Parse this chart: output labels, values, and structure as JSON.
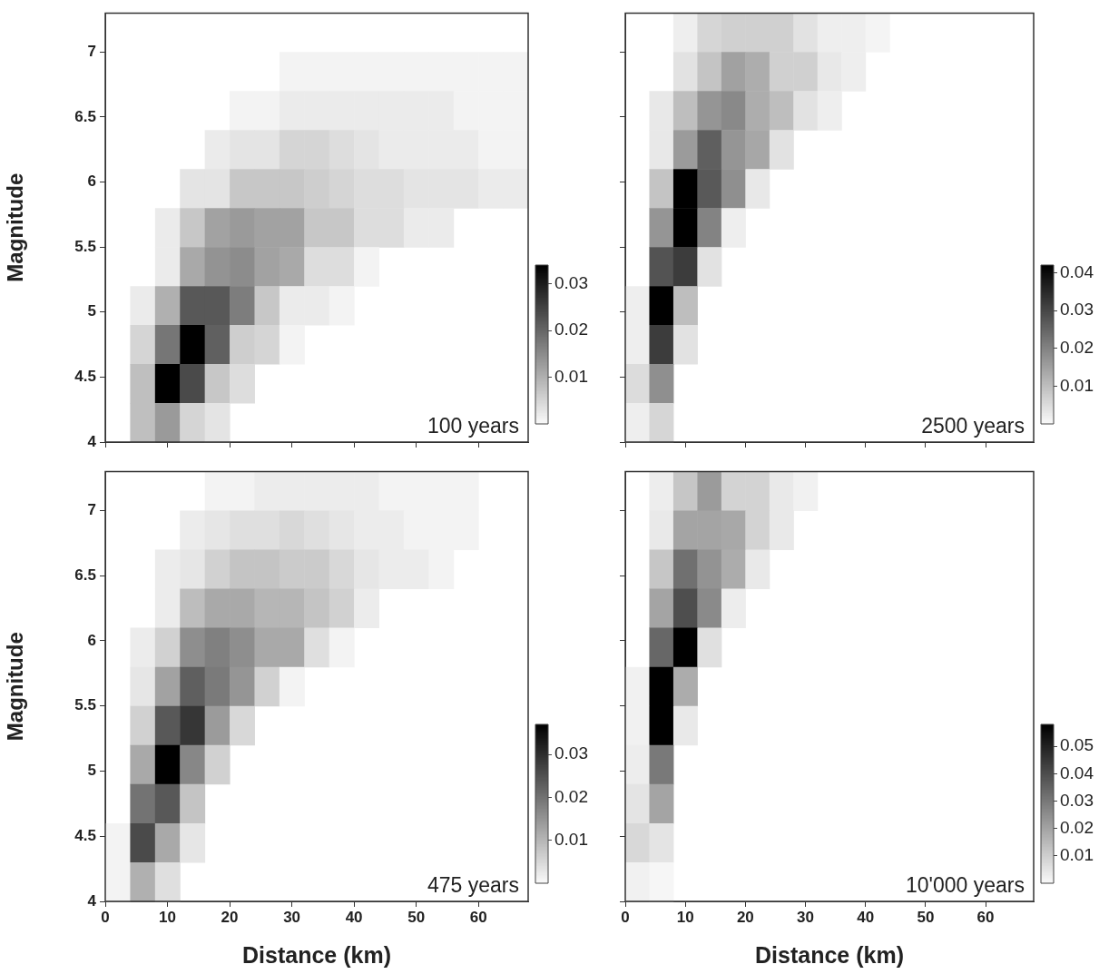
{
  "chart_data": [
    {
      "type": "heatmap",
      "ylabel": "Magnitude",
      "annotations": [
        "100 years"
      ],
      "tick_labels": "y",
      "x": [
        2,
        6,
        10,
        14,
        18,
        22,
        26,
        30,
        34,
        38,
        42,
        46,
        50,
        54,
        58,
        62,
        66
      ],
      "y": [
        6.85,
        6.55,
        6.25,
        5.95,
        5.65,
        5.35,
        5.05,
        4.75,
        4.45,
        4.15
      ],
      "xlim": [
        0,
        68
      ],
      "xticks": [
        0,
        10,
        20,
        30,
        40,
        50,
        60
      ],
      "ylim": [
        4,
        7.3
      ],
      "yticks": [
        4,
        4.5,
        5,
        5.5,
        6,
        6.5,
        7
      ],
      "clim": [
        0,
        0.034
      ],
      "cticks": [
        0.01,
        0.02,
        0.03
      ],
      "cells": [
        [
          null,
          null,
          null,
          null,
          null,
          null,
          null,
          0.001,
          0.001,
          0.001,
          0.001,
          0.001,
          0.001,
          0.001,
          0.001,
          0.001,
          0.001
        ],
        [
          null,
          null,
          null,
          null,
          null,
          0.001,
          0.001,
          0.002,
          0.002,
          0.002,
          0.002,
          0.002,
          0.002,
          0.002,
          0.001,
          0.001,
          0.001
        ],
        [
          null,
          null,
          null,
          null,
          0.002,
          0.003,
          0.003,
          0.005,
          0.005,
          0.004,
          0.003,
          0.002,
          0.002,
          0.002,
          0.002,
          0.001,
          0.001
        ],
        [
          null,
          null,
          null,
          0.003,
          0.003,
          0.007,
          0.007,
          0.007,
          0.006,
          0.005,
          0.004,
          0.004,
          0.003,
          0.003,
          0.003,
          0.002,
          0.002
        ],
        [
          null,
          null,
          0.002,
          0.007,
          0.012,
          0.013,
          0.012,
          0.012,
          0.007,
          0.007,
          0.004,
          0.004,
          0.002,
          0.002,
          null,
          null,
          null
        ],
        [
          null,
          null,
          0.002,
          0.011,
          0.014,
          0.015,
          0.012,
          0.011,
          0.004,
          0.004,
          0.001,
          null,
          null,
          null,
          null,
          null,
          null
        ],
        [
          null,
          0.002,
          0.01,
          0.022,
          0.022,
          0.017,
          0.007,
          0.002,
          0.002,
          0.001,
          null,
          null,
          null,
          null,
          null,
          null,
          null
        ],
        [
          null,
          0.005,
          0.018,
          0.034,
          0.021,
          0.006,
          0.005,
          0.001,
          null,
          null,
          null,
          null,
          null,
          null,
          null,
          null,
          null
        ],
        [
          null,
          0.008,
          0.034,
          0.024,
          0.007,
          0.004,
          null,
          null,
          null,
          null,
          null,
          null,
          null,
          null,
          null,
          null,
          null
        ],
        [
          null,
          0.008,
          0.013,
          0.005,
          0.003,
          null,
          null,
          null,
          null,
          null,
          null,
          null,
          null,
          null,
          null,
          null,
          null
        ]
      ]
    },
    {
      "type": "heatmap",
      "annotations": [
        "2500 years"
      ],
      "tick_labels": false,
      "x": [
        2,
        6,
        10,
        14,
        18,
        22,
        26,
        30,
        34,
        38,
        42
      ],
      "y": [
        7.15,
        6.85,
        6.55,
        6.25,
        5.95,
        5.65,
        5.35,
        5.05,
        4.75,
        4.45,
        4.15
      ],
      "xlim": [
        0,
        68
      ],
      "xticks": [
        0,
        10,
        20,
        30,
        40,
        50,
        60
      ],
      "ylim": [
        4,
        7.3
      ],
      "yticks": [
        4,
        4.5,
        5,
        5.5,
        6,
        6.5,
        7
      ],
      "clim": [
        0,
        0.042
      ],
      "cticks": [
        0.01,
        0.02,
        0.03,
        0.04
      ],
      "cells": [
        [
          null,
          null,
          0.002,
          0.006,
          0.007,
          0.007,
          0.007,
          0.004,
          0.002,
          0.002,
          0.001
        ],
        [
          null,
          null,
          0.004,
          0.009,
          0.015,
          0.013,
          0.007,
          0.007,
          0.003,
          0.002,
          null
        ],
        [
          null,
          0.003,
          0.01,
          0.017,
          0.019,
          0.013,
          0.01,
          0.004,
          0.002,
          null,
          null
        ],
        [
          null,
          0.003,
          0.016,
          0.026,
          0.017,
          0.014,
          0.004,
          null,
          null,
          null,
          null
        ],
        [
          null,
          0.009,
          0.042,
          0.027,
          0.018,
          0.003,
          null,
          null,
          null,
          null,
          null
        ],
        [
          null,
          0.017,
          0.042,
          0.02,
          0.002,
          null,
          null,
          null,
          null,
          null,
          null
        ],
        [
          null,
          0.028,
          0.032,
          0.004,
          null,
          null,
          null,
          null,
          null,
          null,
          null
        ],
        [
          0.002,
          0.042,
          0.01,
          null,
          null,
          null,
          null,
          null,
          null,
          null,
          null
        ],
        [
          0.002,
          0.032,
          0.004,
          null,
          null,
          null,
          null,
          null,
          null,
          null,
          null
        ],
        [
          0.005,
          0.018,
          null,
          null,
          null,
          null,
          null,
          null,
          null,
          null,
          null
        ],
        [
          0.002,
          0.006,
          null,
          null,
          null,
          null,
          null,
          null,
          null,
          null,
          null
        ]
      ]
    },
    {
      "type": "heatmap",
      "xlabel": "Distance (km)",
      "ylabel": "Magnitude",
      "annotations": [
        "475 years"
      ],
      "x": [
        2,
        6,
        10,
        14,
        18,
        22,
        26,
        30,
        34,
        38,
        42,
        46,
        50,
        54,
        58
      ],
      "y": [
        7.15,
        6.85,
        6.55,
        6.25,
        5.95,
        5.65,
        5.35,
        5.05,
        4.75,
        4.45,
        4.15
      ],
      "xlim": [
        0,
        68
      ],
      "xticks": [
        0,
        10,
        20,
        30,
        40,
        50,
        60
      ],
      "ylim": [
        4,
        7.3
      ],
      "yticks": [
        4,
        4.5,
        5,
        5.5,
        6,
        6.5,
        7
      ],
      "clim": [
        0,
        0.037
      ],
      "cticks": [
        0.01,
        0.02,
        0.03
      ],
      "cells": [
        [
          null,
          null,
          null,
          null,
          0.001,
          0.001,
          0.002,
          0.002,
          0.002,
          0.002,
          0.002,
          0.001,
          0.001,
          0.001,
          0.001
        ],
        [
          null,
          null,
          null,
          0.002,
          0.003,
          0.004,
          0.004,
          0.005,
          0.004,
          0.003,
          0.002,
          0.002,
          0.001,
          0.001,
          0.001
        ],
        [
          null,
          null,
          0.002,
          0.003,
          0.006,
          0.008,
          0.008,
          0.007,
          0.007,
          0.005,
          0.003,
          0.002,
          0.002,
          0.001,
          null
        ],
        [
          null,
          null,
          0.002,
          0.009,
          0.012,
          0.012,
          0.01,
          0.01,
          0.008,
          0.006,
          0.002,
          null,
          null,
          null,
          null
        ],
        [
          null,
          0.002,
          0.006,
          0.016,
          0.018,
          0.016,
          0.012,
          0.012,
          0.004,
          0.001,
          null,
          null,
          null,
          null,
          null
        ],
        [
          null,
          0.003,
          0.013,
          0.023,
          0.019,
          0.015,
          0.006,
          0.001,
          null,
          null,
          null,
          null,
          null,
          null,
          null
        ],
        [
          null,
          0.006,
          0.024,
          0.029,
          0.014,
          0.005,
          null,
          null,
          null,
          null,
          null,
          null,
          null,
          null,
          null
        ],
        [
          null,
          0.012,
          0.037,
          0.017,
          0.006,
          null,
          null,
          null,
          null,
          null,
          null,
          null,
          null,
          null,
          null
        ],
        [
          null,
          0.02,
          0.024,
          0.008,
          null,
          null,
          null,
          null,
          null,
          null,
          null,
          null,
          null,
          null,
          null
        ],
        [
          0.001,
          0.026,
          0.012,
          0.003,
          null,
          null,
          null,
          null,
          null,
          null,
          null,
          null,
          null,
          null,
          null
        ],
        [
          0.001,
          0.011,
          0.004,
          null,
          null,
          null,
          null,
          null,
          null,
          null,
          null,
          null,
          null,
          null,
          null
        ]
      ]
    },
    {
      "type": "heatmap",
      "xlabel": "Distance (km)",
      "annotations": [
        "10'000 years"
      ],
      "tick_labels": "x",
      "x": [
        2,
        6,
        10,
        14,
        18,
        22,
        26,
        30
      ],
      "y": [
        7.15,
        6.85,
        6.55,
        6.25,
        5.95,
        5.65,
        5.35,
        5.05,
        4.75,
        4.45,
        4.15
      ],
      "xlim": [
        0,
        68
      ],
      "xticks": [
        0,
        10,
        20,
        30,
        40,
        50,
        60
      ],
      "ylim": [
        4,
        7.3
      ],
      "yticks": [
        4,
        4.5,
        5,
        5.5,
        6,
        6.5,
        7
      ],
      "clim": [
        0,
        0.058
      ],
      "cticks": [
        0.01,
        0.02,
        0.03,
        0.04,
        0.05
      ],
      "cells": [
        [
          null,
          0.003,
          0.012,
          0.022,
          0.009,
          0.009,
          0.004,
          0.002
        ],
        [
          null,
          0.004,
          0.02,
          0.02,
          0.019,
          0.009,
          0.004,
          null
        ],
        [
          null,
          0.012,
          0.032,
          0.024,
          0.018,
          0.004,
          null,
          null
        ],
        [
          null,
          0.02,
          0.04,
          0.026,
          0.003,
          null,
          null,
          null
        ],
        [
          null,
          0.034,
          0.058,
          0.006,
          null,
          null,
          null,
          null
        ],
        [
          0.002,
          0.058,
          0.018,
          null,
          null,
          null,
          null,
          null
        ],
        [
          0.002,
          0.058,
          0.004,
          null,
          null,
          null,
          null,
          null
        ],
        [
          0.003,
          0.03,
          null,
          null,
          null,
          null,
          null,
          null
        ],
        [
          0.005,
          0.02,
          null,
          null,
          null,
          null,
          null,
          null
        ],
        [
          0.008,
          0.005,
          null,
          null,
          null,
          null,
          null,
          null
        ],
        [
          0.002,
          0.001,
          null,
          null,
          null,
          null,
          null,
          null
        ]
      ]
    }
  ]
}
